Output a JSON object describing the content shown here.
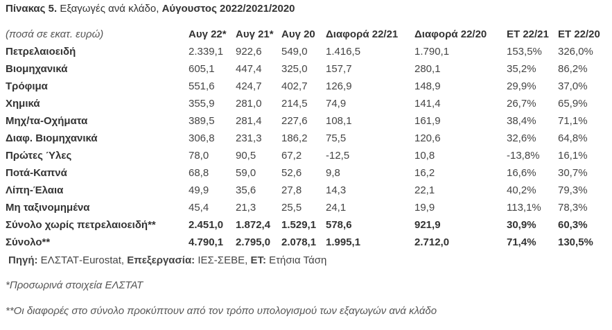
{
  "title": {
    "label": "Πίνακας 5.",
    "text": "Εξαγωγές ανά κλάδο,",
    "period": "Αύγουστος 2022/2021/2020"
  },
  "table": {
    "headers": [
      "(ποσά σε εκατ. ευρώ)",
      "Αυγ 22*",
      "Αυγ 21*",
      "Αυγ 20",
      "Διαφορά 22/21",
      "Διαφορά 22/20",
      "ΕΤ 22/21",
      "ΕΤ 22/20"
    ],
    "rows": [
      [
        "Πετρελαιοειδή",
        "2.339,1",
        "922,6",
        "549,0",
        "1.416,5",
        "1.790,1",
        "153,5%",
        "326,0%"
      ],
      [
        "Βιομηχανικά",
        "605,1",
        "447,4",
        "325,0",
        "157,7",
        "280,1",
        "35,2%",
        "86,2%"
      ],
      [
        "Τρόφιμα",
        "551,6",
        "424,7",
        "402,7",
        "126,9",
        "148,9",
        "29,9%",
        "37,0%"
      ],
      [
        "Χημικά",
        "355,9",
        "281,0",
        "214,5",
        "74,9",
        "141,4",
        "26,7%",
        "65,9%"
      ],
      [
        "Μηχ/τα-Οχήματα",
        "389,5",
        "281,4",
        "227,6",
        "108,1",
        "161,9",
        "38,4%",
        "71,1%"
      ],
      [
        "Διαφ. Βιομηχανικά",
        "306,8",
        "231,3",
        "186,2",
        "75,5",
        "120,6",
        "32,6%",
        "64,8%"
      ],
      [
        "Πρώτες Ύλες",
        "78,0",
        "90,5",
        "67,2",
        "-12,5",
        "10,8",
        "-13,8%",
        "16,1%"
      ],
      [
        "Ποτά-Καπνά",
        "68,8",
        "59,0",
        "52,6",
        "9,8",
        "16,2",
        "16,6%",
        "30,7%"
      ],
      [
        "Λίπη-Έλαια",
        "49,9",
        "35,6",
        "27,8",
        "14,3",
        "22,1",
        "40,2%",
        "79,3%"
      ],
      [
        "Μη ταξινομημένα",
        "45,4",
        "21,3",
        "25,5",
        "24,1",
        "19,9",
        "113,1%",
        "78,3%"
      ],
      [
        "Σύνολο χωρίς πετρελαιοειδή**",
        "2.451,0",
        "1.872,4",
        "1.529,1",
        "578,6",
        "921,9",
        "30,9%",
        "60,3%"
      ],
      [
        "Σύνολο**",
        "4.790,1",
        "2.795,0",
        "2.078,1",
        "1.995,1",
        "2.712,0",
        "71,4%",
        "130,5%"
      ]
    ]
  },
  "source": [
    {
      "label": "Πηγή:",
      "text": "ΕΛΣΤΑΤ-Eurostat,"
    },
    {
      "label": "Επεξεργασία:",
      "text": "ΙΕΣ-ΣΕΒΕ,"
    },
    {
      "label": "ΕΤ:",
      "text": "Ετήσια Τάση"
    }
  ],
  "notes": [
    "*Προσωρινά στοιχεία ΕΛΣΤΑΤ",
    "**Οι διαφορές στο σύνολο προκύπτουν από τον τρόπο υπολογισμού των εξαγωγών ανά κλάδο"
  ]
}
